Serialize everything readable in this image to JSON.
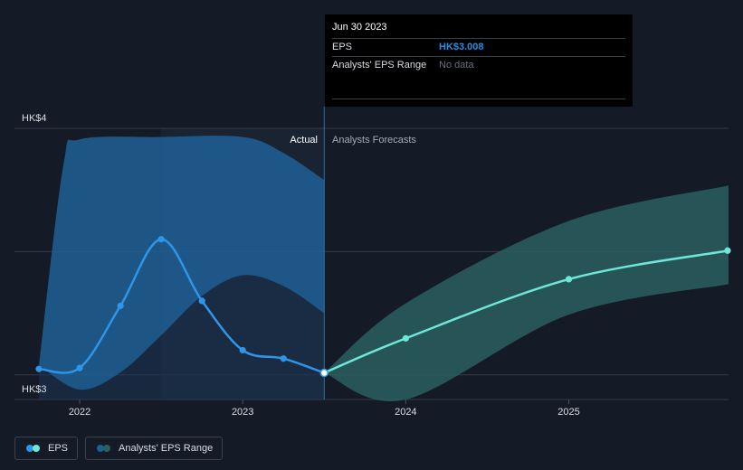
{
  "chart_data": {
    "type": "line",
    "y_ticks": [
      "HK$4",
      "HK$3"
    ],
    "ylim": [
      2.9,
      4.0
    ],
    "x_ticks": [
      {
        "label": "2022",
        "x": 2022.0
      },
      {
        "label": "2023",
        "x": 2023.0
      },
      {
        "label": "2024",
        "x": 2024.0
      },
      {
        "label": "2025",
        "x": 2025.0
      }
    ],
    "xlim": [
      2021.6,
      2025.98
    ],
    "divider_x": 2023.5,
    "section_labels": {
      "actual": "Actual",
      "forecast": "Analysts Forecasts"
    },
    "eps_actual": [
      {
        "x": 2021.75,
        "y": 3.024
      },
      {
        "x": 2022.0,
        "y": 3.028
      },
      {
        "x": 2022.25,
        "y": 3.28
      },
      {
        "x": 2022.5,
        "y": 3.55
      },
      {
        "x": 2022.75,
        "y": 3.3
      },
      {
        "x": 2023.0,
        "y": 3.1
      },
      {
        "x": 2023.25,
        "y": 3.066
      },
      {
        "x": 2023.5,
        "y": 3.008
      }
    ],
    "eps_forecast": [
      {
        "x": 2023.5,
        "y": 3.008
      },
      {
        "x": 2024.0,
        "y": 3.148
      },
      {
        "x": 2025.0,
        "y": 3.388
      },
      {
        "x": 2025.98,
        "y": 3.504
      }
    ],
    "range_actual_upper": [
      {
        "x": 2021.75,
        "y": 3.04
      },
      {
        "x": 2021.9,
        "y": 3.85
      },
      {
        "x": 2022.0,
        "y": 3.955
      },
      {
        "x": 2022.5,
        "y": 3.965
      },
      {
        "x": 2023.0,
        "y": 3.965
      },
      {
        "x": 2023.25,
        "y": 3.9
      },
      {
        "x": 2023.5,
        "y": 3.79
      }
    ],
    "range_actual_lower": [
      {
        "x": 2021.75,
        "y": 3.04
      },
      {
        "x": 2022.0,
        "y": 2.94
      },
      {
        "x": 2022.25,
        "y": 3.01
      },
      {
        "x": 2022.5,
        "y": 3.16
      },
      {
        "x": 2022.75,
        "y": 3.32
      },
      {
        "x": 2023.0,
        "y": 3.404
      },
      {
        "x": 2023.25,
        "y": 3.36
      },
      {
        "x": 2023.5,
        "y": 3.25
      }
    ],
    "range_forecast_upper": [
      {
        "x": 2023.5,
        "y": 3.008
      },
      {
        "x": 2024.0,
        "y": 3.29
      },
      {
        "x": 2025.0,
        "y": 3.624
      },
      {
        "x": 2025.98,
        "y": 3.768
      }
    ],
    "range_forecast_lower": [
      {
        "x": 2023.5,
        "y": 3.008
      },
      {
        "x": 2024.0,
        "y": 2.9
      },
      {
        "x": 2025.0,
        "y": 3.244
      },
      {
        "x": 2025.98,
        "y": 3.368
      }
    ],
    "colors": {
      "background": "#151b26",
      "actual_past_shade": "#1a2331",
      "range_actual": "#1f5e93",
      "range_actual_dark": "#1b3553",
      "range_forecast": "#2a5f60",
      "eps_actual": "#2f95e8",
      "eps_forecast": "#6ee6da",
      "grid": "#323a47"
    }
  },
  "tooltip": {
    "date": "Jun 30 2023",
    "eps_label": "EPS",
    "eps_value": "HK$3.008",
    "range_label": "Analysts' EPS Range",
    "range_value": "No data"
  },
  "legend": {
    "eps": "EPS",
    "range": "Analysts' EPS Range",
    "eps_colors": [
      "#2f95e8",
      "#6ee6da"
    ],
    "range_colors": [
      "#1f5e93",
      "#2a5f60"
    ]
  }
}
